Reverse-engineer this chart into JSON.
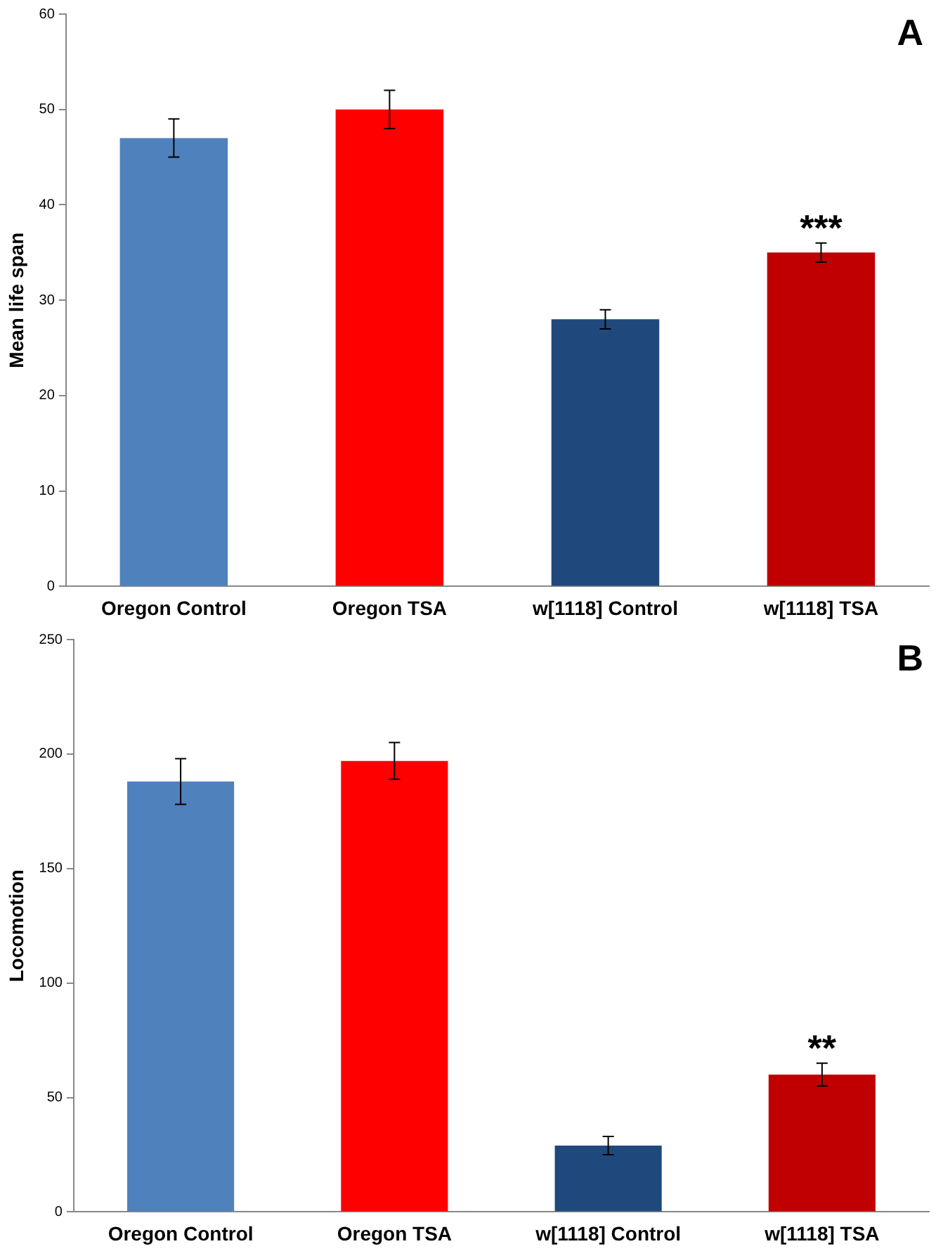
{
  "chart_data": [
    {
      "type": "bar",
      "categories": [
        "Oregon Control",
        "Oregon TSA",
        "w[1118] Control",
        "w[1118] TSA"
      ],
      "values": [
        47,
        50,
        28,
        35
      ],
      "colors": [
        "#4f81bd",
        "#ff0000",
        "#1f497d",
        "#c00000"
      ],
      "errors": [
        2,
        2,
        1,
        1
      ],
      "ylabel": "Mean life span",
      "ylim": [
        0,
        60
      ],
      "yticks": [
        0,
        10,
        20,
        30,
        40,
        50,
        60
      ],
      "grid": false,
      "annotations": [
        "A",
        {
          "text": "***",
          "x": "w[1118] TSA",
          "y": 36
        }
      ]
    },
    {
      "type": "bar",
      "categories": [
        "Oregon Control",
        "Oregon TSA",
        "w[1118] Control",
        "w[1118] TSA"
      ],
      "values": [
        188,
        197,
        29,
        60
      ],
      "colors": [
        "#4f81bd",
        "#ff0000",
        "#1f497d",
        "#c00000"
      ],
      "errors": [
        10,
        8,
        4,
        5
      ],
      "ylabel": "Locomotion",
      "ylim": [
        0,
        250
      ],
      "yticks": [
        0,
        50,
        100,
        150,
        200,
        250
      ],
      "grid": false,
      "annotations": [
        "B",
        {
          "text": "**",
          "x": "w[1118] TSA",
          "y": 65
        }
      ]
    }
  ]
}
